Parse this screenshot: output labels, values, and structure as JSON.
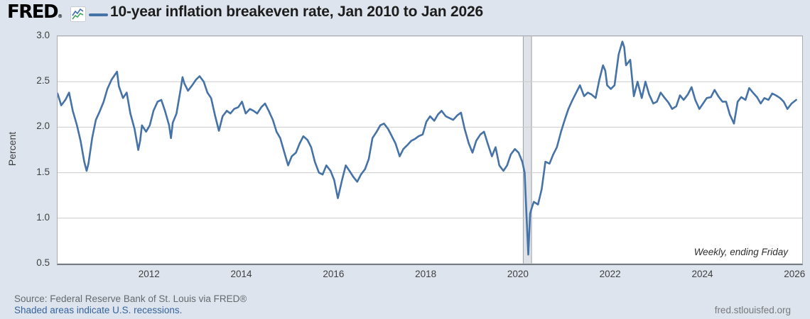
{
  "header": {
    "logo_text": "FRED",
    "logo_reg": "®",
    "title": "10-year inflation breakeven rate, Jan 2010 to Jan 2026"
  },
  "footer": {
    "source": "Source: Federal Reserve Bank of St. Louis via FRED®",
    "recession_note": "Shaded areas indicate U.S. recessions.",
    "site": "fred.stlouisfed.org"
  },
  "colors": {
    "line": "#4572a7",
    "background": "#dde4ed",
    "plot_background": "#ffffff",
    "gridline": "#cbcbcb",
    "recession_band_fill": "#dfe2e7",
    "recession_band_edge": "#9aa0a7",
    "link": "#35649c",
    "logo_icon_green": "#3fa45b",
    "logo_icon_blue": "#3f6eb5"
  },
  "chart_data": {
    "type": "line",
    "title": "10-year inflation breakeven rate, Jan 2010 to Jan 2026",
    "xlabel": "",
    "ylabel": "Percent",
    "frequency_note": "Weekly, ending Friday",
    "legend_position": "top",
    "grid": "horizontal",
    "x_range": [
      2010.0,
      2026.15
    ],
    "ylim": [
      0.5,
      3.0
    ],
    "yticks": [
      0.5,
      1.0,
      1.5,
      2.0,
      2.5,
      3.0
    ],
    "xticks": [
      2012,
      2014,
      2016,
      2018,
      2020,
      2022,
      2024,
      2026
    ],
    "recessions": [
      {
        "start": 2020.1,
        "end": 2020.28
      }
    ],
    "series": [
      {
        "name": "10-year inflation breakeven rate",
        "color": "#4572a7",
        "points": [
          [
            2010.0,
            2.37
          ],
          [
            2010.08,
            2.24
          ],
          [
            2010.17,
            2.3
          ],
          [
            2010.25,
            2.38
          ],
          [
            2010.33,
            2.18
          ],
          [
            2010.42,
            2.02
          ],
          [
            2010.5,
            1.85
          ],
          [
            2010.58,
            1.62
          ],
          [
            2010.63,
            1.52
          ],
          [
            2010.67,
            1.6
          ],
          [
            2010.75,
            1.88
          ],
          [
            2010.83,
            2.08
          ],
          [
            2010.92,
            2.18
          ],
          [
            2011.0,
            2.28
          ],
          [
            2011.08,
            2.42
          ],
          [
            2011.17,
            2.52
          ],
          [
            2011.25,
            2.58
          ],
          [
            2011.29,
            2.61
          ],
          [
            2011.33,
            2.45
          ],
          [
            2011.42,
            2.32
          ],
          [
            2011.5,
            2.38
          ],
          [
            2011.58,
            2.15
          ],
          [
            2011.67,
            1.98
          ],
          [
            2011.75,
            1.75
          ],
          [
            2011.79,
            1.85
          ],
          [
            2011.83,
            2.02
          ],
          [
            2011.92,
            1.95
          ],
          [
            2012.0,
            2.02
          ],
          [
            2012.08,
            2.18
          ],
          [
            2012.17,
            2.28
          ],
          [
            2012.25,
            2.3
          ],
          [
            2012.33,
            2.18
          ],
          [
            2012.42,
            2.02
          ],
          [
            2012.46,
            1.88
          ],
          [
            2012.5,
            2.05
          ],
          [
            2012.58,
            2.15
          ],
          [
            2012.67,
            2.42
          ],
          [
            2012.71,
            2.55
          ],
          [
            2012.75,
            2.48
          ],
          [
            2012.83,
            2.4
          ],
          [
            2012.92,
            2.46
          ],
          [
            2013.0,
            2.52
          ],
          [
            2013.08,
            2.56
          ],
          [
            2013.17,
            2.5
          ],
          [
            2013.25,
            2.38
          ],
          [
            2013.33,
            2.32
          ],
          [
            2013.42,
            2.12
          ],
          [
            2013.5,
            1.96
          ],
          [
            2013.58,
            2.12
          ],
          [
            2013.67,
            2.18
          ],
          [
            2013.75,
            2.15
          ],
          [
            2013.83,
            2.2
          ],
          [
            2013.92,
            2.22
          ],
          [
            2014.0,
            2.28
          ],
          [
            2014.08,
            2.15
          ],
          [
            2014.17,
            2.2
          ],
          [
            2014.25,
            2.18
          ],
          [
            2014.33,
            2.15
          ],
          [
            2014.42,
            2.22
          ],
          [
            2014.5,
            2.26
          ],
          [
            2014.58,
            2.18
          ],
          [
            2014.67,
            2.08
          ],
          [
            2014.75,
            1.95
          ],
          [
            2014.83,
            1.88
          ],
          [
            2014.92,
            1.72
          ],
          [
            2015.0,
            1.58
          ],
          [
            2015.08,
            1.68
          ],
          [
            2015.17,
            1.72
          ],
          [
            2015.25,
            1.82
          ],
          [
            2015.33,
            1.9
          ],
          [
            2015.42,
            1.86
          ],
          [
            2015.5,
            1.78
          ],
          [
            2015.58,
            1.62
          ],
          [
            2015.67,
            1.5
          ],
          [
            2015.75,
            1.48
          ],
          [
            2015.83,
            1.58
          ],
          [
            2015.92,
            1.52
          ],
          [
            2016.0,
            1.42
          ],
          [
            2016.08,
            1.22
          ],
          [
            2016.17,
            1.42
          ],
          [
            2016.25,
            1.58
          ],
          [
            2016.33,
            1.52
          ],
          [
            2016.42,
            1.45
          ],
          [
            2016.5,
            1.4
          ],
          [
            2016.58,
            1.48
          ],
          [
            2016.67,
            1.54
          ],
          [
            2016.75,
            1.65
          ],
          [
            2016.83,
            1.88
          ],
          [
            2016.92,
            1.95
          ],
          [
            2017.0,
            2.02
          ],
          [
            2017.08,
            2.04
          ],
          [
            2017.17,
            1.98
          ],
          [
            2017.25,
            1.9
          ],
          [
            2017.33,
            1.82
          ],
          [
            2017.42,
            1.68
          ],
          [
            2017.5,
            1.76
          ],
          [
            2017.58,
            1.8
          ],
          [
            2017.67,
            1.85
          ],
          [
            2017.75,
            1.87
          ],
          [
            2017.83,
            1.9
          ],
          [
            2017.92,
            1.92
          ],
          [
            2018.0,
            2.06
          ],
          [
            2018.08,
            2.12
          ],
          [
            2018.17,
            2.07
          ],
          [
            2018.25,
            2.14
          ],
          [
            2018.33,
            2.18
          ],
          [
            2018.42,
            2.12
          ],
          [
            2018.5,
            2.1
          ],
          [
            2018.58,
            2.08
          ],
          [
            2018.67,
            2.13
          ],
          [
            2018.75,
            2.16
          ],
          [
            2018.83,
            1.98
          ],
          [
            2018.92,
            1.82
          ],
          [
            2019.0,
            1.72
          ],
          [
            2019.08,
            1.85
          ],
          [
            2019.17,
            1.92
          ],
          [
            2019.25,
            1.95
          ],
          [
            2019.33,
            1.82
          ],
          [
            2019.42,
            1.68
          ],
          [
            2019.5,
            1.78
          ],
          [
            2019.58,
            1.58
          ],
          [
            2019.67,
            1.52
          ],
          [
            2019.75,
            1.58
          ],
          [
            2019.83,
            1.7
          ],
          [
            2019.92,
            1.76
          ],
          [
            2020.0,
            1.72
          ],
          [
            2020.08,
            1.62
          ],
          [
            2020.13,
            1.5
          ],
          [
            2020.17,
            1.05
          ],
          [
            2020.21,
            0.6
          ],
          [
            2020.25,
            1.05
          ],
          [
            2020.29,
            1.12
          ],
          [
            2020.33,
            1.18
          ],
          [
            2020.42,
            1.15
          ],
          [
            2020.5,
            1.32
          ],
          [
            2020.58,
            1.62
          ],
          [
            2020.67,
            1.6
          ],
          [
            2020.75,
            1.7
          ],
          [
            2020.83,
            1.78
          ],
          [
            2020.92,
            1.95
          ],
          [
            2021.0,
            2.08
          ],
          [
            2021.08,
            2.2
          ],
          [
            2021.17,
            2.3
          ],
          [
            2021.25,
            2.38
          ],
          [
            2021.33,
            2.46
          ],
          [
            2021.42,
            2.34
          ],
          [
            2021.5,
            2.38
          ],
          [
            2021.58,
            2.36
          ],
          [
            2021.67,
            2.32
          ],
          [
            2021.75,
            2.52
          ],
          [
            2021.83,
            2.68
          ],
          [
            2021.88,
            2.62
          ],
          [
            2021.92,
            2.46
          ],
          [
            2022.0,
            2.42
          ],
          [
            2022.08,
            2.46
          ],
          [
            2022.17,
            2.8
          ],
          [
            2022.25,
            2.94
          ],
          [
            2022.29,
            2.88
          ],
          [
            2022.33,
            2.68
          ],
          [
            2022.42,
            2.74
          ],
          [
            2022.5,
            2.34
          ],
          [
            2022.58,
            2.5
          ],
          [
            2022.67,
            2.32
          ],
          [
            2022.75,
            2.5
          ],
          [
            2022.83,
            2.36
          ],
          [
            2022.92,
            2.26
          ],
          [
            2023.0,
            2.28
          ],
          [
            2023.08,
            2.38
          ],
          [
            2023.17,
            2.32
          ],
          [
            2023.25,
            2.27
          ],
          [
            2023.33,
            2.2
          ],
          [
            2023.42,
            2.23
          ],
          [
            2023.5,
            2.35
          ],
          [
            2023.58,
            2.3
          ],
          [
            2023.67,
            2.36
          ],
          [
            2023.75,
            2.44
          ],
          [
            2023.83,
            2.3
          ],
          [
            2023.92,
            2.2
          ],
          [
            2024.0,
            2.26
          ],
          [
            2024.08,
            2.32
          ],
          [
            2024.17,
            2.33
          ],
          [
            2024.25,
            2.41
          ],
          [
            2024.33,
            2.34
          ],
          [
            2024.42,
            2.28
          ],
          [
            2024.5,
            2.28
          ],
          [
            2024.58,
            2.14
          ],
          [
            2024.67,
            2.04
          ],
          [
            2024.75,
            2.28
          ],
          [
            2024.83,
            2.33
          ],
          [
            2024.92,
            2.3
          ],
          [
            2025.0,
            2.43
          ],
          [
            2025.08,
            2.38
          ],
          [
            2025.17,
            2.33
          ],
          [
            2025.25,
            2.26
          ],
          [
            2025.33,
            2.32
          ],
          [
            2025.42,
            2.3
          ],
          [
            2025.5,
            2.37
          ],
          [
            2025.58,
            2.35
          ],
          [
            2025.67,
            2.32
          ],
          [
            2025.75,
            2.28
          ],
          [
            2025.83,
            2.2
          ],
          [
            2025.92,
            2.26
          ],
          [
            2026.02,
            2.3
          ]
        ]
      }
    ]
  }
}
